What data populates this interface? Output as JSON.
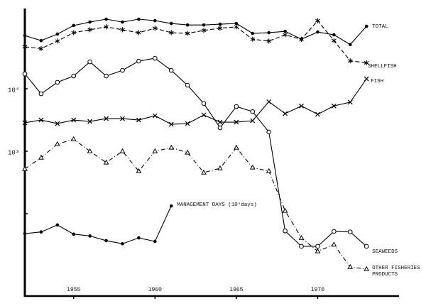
{
  "chart_data": {
    "type": "line",
    "log_y": true,
    "grid": false,
    "xlim": [
      1952,
      1975
    ],
    "xticks": [
      1955,
      1960,
      1965,
      1970
    ],
    "ylim": [
      4.8,
      178000
    ],
    "yticks": [
      {
        "value": 10000,
        "label": "10⁴"
      },
      {
        "value": 1000,
        "label": "10³"
      },
      {
        "value": 100,
        "label": ""
      }
    ],
    "x": [
      1952,
      1953,
      1954,
      1955,
      1956,
      1957,
      1958,
      1959,
      1960,
      1961,
      1962,
      1963,
      1964,
      1965,
      1966,
      1967,
      1968,
      1969,
      1970,
      1971,
      1972,
      1973
    ],
    "series": [
      {
        "name": "TOTAL",
        "color": "#000000",
        "marker": "dot",
        "dash": "solid",
        "values": [
          71000,
          59000,
          75000,
          103000,
          117000,
          130000,
          117000,
          130000,
          123000,
          111000,
          105000,
          105000,
          108000,
          111000,
          77000,
          79000,
          83000,
          62000,
          81000,
          73000,
          51000,
          100000
        ]
      },
      {
        "name": "SHELLFISH",
        "color": "#000000",
        "marker": "star",
        "dash": "dashed",
        "values": [
          47000,
          44000,
          58000,
          79000,
          88000,
          98000,
          88000,
          79000,
          93000,
          79000,
          77000,
          86000,
          93000,
          98000,
          62000,
          58000,
          73000,
          62000,
          123000,
          59000,
          28000,
          26000
        ]
      },
      {
        "name": "FISH",
        "color": "#000000",
        "marker": "x",
        "dash": "solid",
        "values": [
          2850,
          3160,
          2770,
          3160,
          3000,
          3330,
          3330,
          3160,
          3700,
          2700,
          2770,
          3800,
          2920,
          2920,
          3080,
          6200,
          4000,
          5300,
          3900,
          5300,
          6100,
          14400
        ]
      },
      {
        "name": "SEAWEEDS",
        "color": "#000000",
        "marker": "circle",
        "dash": "solid",
        "values": [
          17300,
          8300,
          12700,
          16000,
          27000,
          16000,
          19700,
          27700,
          30800,
          19700,
          11400,
          5800,
          2370,
          5200,
          4300,
          2030,
          53,
          30,
          30,
          52,
          51,
          30
        ]
      },
      {
        "name": "OTHER FISHERIES PRODUCTS",
        "color": "#000000",
        "marker": "triangle",
        "dash": "dashdot",
        "values": [
          520,
          790,
          1300,
          1560,
          1000,
          660,
          1000,
          480,
          1000,
          1140,
          950,
          456,
          533,
          1140,
          548,
          481,
          111,
          41,
          25,
          32,
          14,
          13
        ]
      },
      {
        "name": "MANAGEMENT DAYS (10⁶days)",
        "color": "#000000",
        "marker": "dot",
        "dash": "solid",
        "values": [
          48,
          51,
          66,
          47,
          44,
          37,
          33,
          41,
          36,
          133,
          null,
          null,
          null,
          null,
          null,
          null,
          null,
          null,
          null,
          null,
          null,
          null
        ]
      }
    ]
  }
}
